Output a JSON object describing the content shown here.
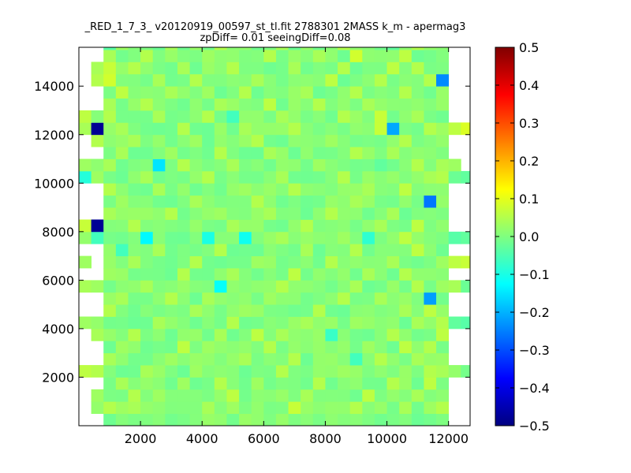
{
  "chart_data": {
    "type": "heatmap",
    "title": "_RED_1_7_3_ v20120919_00597_st_tl.fit 2788301 2MASS k_m - apermag3",
    "subtitle": "zpDiff= 0.01 seeingDiff=0.08",
    "xlabel": "",
    "ylabel": "",
    "xlim": [
      0,
      12700
    ],
    "ylim": [
      0,
      15600
    ],
    "xticks": [
      2000,
      4000,
      6000,
      8000,
      10000,
      12000
    ],
    "yticks": [
      2000,
      4000,
      6000,
      8000,
      10000,
      12000,
      14000
    ],
    "xtick_labels": [
      "2000",
      "4000",
      "6000",
      "8000",
      "10000",
      "12000"
    ],
    "ytick_labels": [
      "2000",
      "4000",
      "6000",
      "8000",
      "10000",
      "12000",
      "14000"
    ],
    "grid": false,
    "colormap": "jet",
    "clim": [
      -0.5,
      0.5
    ],
    "colorbar_ticks": [
      0.5,
      0.4,
      0.3,
      0.2,
      0.1,
      0.0,
      -0.1,
      -0.2,
      -0.3,
      -0.4,
      -0.5
    ],
    "colorbar_tick_labels": [
      "0.5",
      "0.4",
      "0.3",
      "0.2",
      "0.1",
      "0.0",
      "−0.1",
      "−0.2",
      "−0.3",
      "−0.4",
      "−0.5"
    ],
    "grid_cols": 32,
    "grid_rows": 32,
    "cell_width": 400,
    "cell_height": 500,
    "x_origin": 0,
    "y_origin": 0,
    "cells": [
      [
        1,
        1,
        0.02
      ],
      [
        2,
        1,
        0.05
      ],
      [
        3,
        1,
        0.03
      ],
      [
        4,
        1,
        0.04
      ],
      [
        5,
        1,
        0.02
      ],
      [
        10,
        1,
        0.04
      ],
      [
        12,
        1,
        0.03
      ],
      [
        17,
        1,
        0.07
      ],
      [
        22,
        1,
        0.05
      ],
      [
        26,
        1,
        0.04
      ],
      [
        28,
        1,
        0.03
      ],
      [
        29,
        1,
        0.05
      ],
      [
        1,
        2,
        0.03
      ],
      [
        4,
        2,
        0.05
      ],
      [
        6,
        2,
        0.03
      ],
      [
        12,
        2,
        0.06
      ],
      [
        18,
        2,
        0.04
      ],
      [
        23,
        2,
        0.06
      ],
      [
        27,
        2,
        0.04
      ],
      [
        3,
        3,
        0.04
      ],
      [
        8,
        3,
        0.03
      ],
      [
        11,
        3,
        0.05
      ],
      [
        14,
        3,
        0.03
      ],
      [
        19,
        3,
        0.05
      ],
      [
        25,
        3,
        0.05
      ],
      [
        28,
        3,
        0.06
      ],
      [
        0,
        4,
        0.06
      ],
      [
        1,
        4,
        0.05
      ],
      [
        5,
        4,
        0.04
      ],
      [
        9,
        4,
        0.03
      ],
      [
        16,
        4,
        0.05
      ],
      [
        21,
        4,
        0.03
      ],
      [
        28,
        4,
        0.05
      ],
      [
        29,
        4,
        0.04
      ],
      [
        30,
        4,
        0.02
      ],
      [
        31,
        4,
        -0.01
      ],
      [
        2,
        5,
        0.04
      ],
      [
        7,
        5,
        0.03
      ],
      [
        13,
        5,
        0.04
      ],
      [
        17,
        5,
        0.05
      ],
      [
        22,
        5,
        -0.06
      ],
      [
        24,
        5,
        0.05
      ],
      [
        27,
        5,
        0.04
      ],
      [
        3,
        6,
        0.03
      ],
      [
        8,
        6,
        0.06
      ],
      [
        10,
        6,
        0.03
      ],
      [
        15,
        6,
        0.05
      ],
      [
        23,
        6,
        0.03
      ],
      [
        26,
        6,
        0.06
      ],
      [
        28,
        6,
        0.05
      ],
      [
        1,
        7,
        0.04
      ],
      [
        4,
        7,
        0.05
      ],
      [
        11,
        7,
        0.04
      ],
      [
        14,
        7,
        0.06
      ],
      [
        16,
        7,
        0.04
      ],
      [
        20,
        7,
        -0.07
      ],
      [
        25,
        7,
        0.05
      ],
      [
        29,
        7,
        0.06
      ],
      [
        0,
        8,
        0.03
      ],
      [
        1,
        8,
        0.02
      ],
      [
        6,
        8,
        0.04
      ],
      [
        12,
        8,
        0.05
      ],
      [
        18,
        8,
        0.04
      ],
      [
        22,
        8,
        0.03
      ],
      [
        27,
        8,
        0.04
      ],
      [
        29,
        8,
        0.05
      ],
      [
        30,
        8,
        -0.03
      ],
      [
        31,
        8,
        -0.04
      ],
      [
        2,
        9,
        0.05
      ],
      [
        9,
        9,
        0.04
      ],
      [
        13,
        9,
        0.03
      ],
      [
        19,
        9,
        0.05
      ],
      [
        26,
        9,
        0.04
      ],
      [
        28,
        9,
        0.06
      ],
      [
        3,
        10,
        0.04
      ],
      [
        7,
        10,
        0.05
      ],
      [
        10,
        10,
        0.04
      ],
      [
        15,
        10,
        0.03
      ],
      [
        21,
        10,
        0.05
      ],
      [
        24,
        10,
        0.04
      ],
      [
        28,
        10,
        -0.22
      ],
      [
        0,
        11,
        0.04
      ],
      [
        1,
        11,
        0.03
      ],
      [
        5,
        11,
        0.04
      ],
      [
        11,
        11,
        -0.12
      ],
      [
        16,
        11,
        0.05
      ],
      [
        22,
        11,
        0.04
      ],
      [
        27,
        11,
        0.05
      ],
      [
        29,
        11,
        0.03
      ],
      [
        30,
        11,
        0.04
      ],
      [
        31,
        11,
        -0.02
      ],
      [
        2,
        12,
        0.03
      ],
      [
        8,
        12,
        0.05
      ],
      [
        12,
        12,
        0.04
      ],
      [
        17,
        12,
        0.06
      ],
      [
        23,
        12,
        0.04
      ],
      [
        26,
        12,
        0.05
      ],
      [
        0,
        13,
        0.03
      ],
      [
        4,
        13,
        0.04
      ],
      [
        9,
        13,
        0.05
      ],
      [
        14,
        13,
        0.03
      ],
      [
        20,
        13,
        0.05
      ],
      [
        25,
        13,
        0.04
      ],
      [
        29,
        13,
        0.03
      ],
      [
        30,
        13,
        0.06
      ],
      [
        31,
        13,
        0.07
      ],
      [
        3,
        14,
        -0.06
      ],
      [
        6,
        14,
        0.04
      ],
      [
        11,
        14,
        0.05
      ],
      [
        18,
        14,
        0.04
      ],
      [
        22,
        14,
        0.05
      ],
      [
        27,
        14,
        0.06
      ],
      [
        0,
        15,
        0.02
      ],
      [
        1,
        15,
        -0.06
      ],
      [
        5,
        15,
        -0.13
      ],
      [
        10,
        15,
        -0.1
      ],
      [
        13,
        15,
        -0.11
      ],
      [
        16,
        15,
        0.04
      ],
      [
        21,
        15,
        0.03
      ],
      [
        23,
        15,
        -0.08
      ],
      [
        26,
        15,
        0.06
      ],
      [
        30,
        15,
        -0.04
      ],
      [
        31,
        15,
        -0.03
      ],
      [
        0,
        16,
        0.07
      ],
      [
        1,
        16,
        -0.48
      ],
      [
        4,
        16,
        0.05
      ],
      [
        12,
        16,
        0.04
      ],
      [
        18,
        16,
        0.05
      ],
      [
        24,
        16,
        0.04
      ],
      [
        27,
        16,
        0.06
      ],
      [
        2,
        17,
        0.04
      ],
      [
        7,
        17,
        0.05
      ],
      [
        11,
        17,
        0.03
      ],
      [
        15,
        17,
        0.04
      ],
      [
        20,
        17,
        0.05
      ],
      [
        25,
        17,
        0.04
      ],
      [
        3,
        18,
        0.03
      ],
      [
        9,
        18,
        0.04
      ],
      [
        14,
        18,
        0.05
      ],
      [
        22,
        18,
        0.04
      ],
      [
        28,
        18,
        -0.26
      ],
      [
        2,
        19,
        0.05
      ],
      [
        6,
        19,
        0.04
      ],
      [
        13,
        19,
        0.03
      ],
      [
        17,
        19,
        0.05
      ],
      [
        23,
        19,
        0.04
      ],
      [
        26,
        19,
        0.06
      ],
      [
        0,
        20,
        -0.09
      ],
      [
        1,
        20,
        0.03
      ],
      [
        5,
        20,
        0.04
      ],
      [
        10,
        20,
        0.05
      ],
      [
        16,
        20,
        0.04
      ],
      [
        21,
        20,
        0.05
      ],
      [
        28,
        20,
        0.04
      ],
      [
        29,
        20,
        0.05
      ],
      [
        30,
        20,
        -0.02
      ],
      [
        31,
        20,
        -0.03
      ],
      [
        0,
        21,
        0.03
      ],
      [
        2,
        21,
        0.04
      ],
      [
        6,
        21,
        -0.15
      ],
      [
        8,
        21,
        0.05
      ],
      [
        12,
        21,
        0.04
      ],
      [
        19,
        21,
        0.03
      ],
      [
        24,
        21,
        -0.03
      ],
      [
        27,
        21,
        0.05
      ],
      [
        29,
        21,
        0.04
      ],
      [
        30,
        21,
        0.03
      ],
      [
        3,
        22,
        0.04
      ],
      [
        7,
        22,
        0.03
      ],
      [
        11,
        22,
        0.05
      ],
      [
        15,
        22,
        0.04
      ],
      [
        22,
        22,
        0.05
      ],
      [
        25,
        22,
        0.04
      ],
      [
        1,
        23,
        0.05
      ],
      [
        4,
        23,
        0.04
      ],
      [
        9,
        23,
        0.03
      ],
      [
        14,
        23,
        0.05
      ],
      [
        20,
        23,
        0.03
      ],
      [
        26,
        23,
        0.05
      ],
      [
        0,
        24,
        0.04
      ],
      [
        1,
        24,
        -0.48
      ],
      [
        3,
        24,
        0.04
      ],
      [
        8,
        24,
        0.05
      ],
      [
        13,
        24,
        0.04
      ],
      [
        17,
        24,
        0.05
      ],
      [
        24,
        24,
        0.07
      ],
      [
        25,
        24,
        -0.21
      ],
      [
        28,
        24,
        0.05
      ],
      [
        29,
        24,
        0.03
      ],
      [
        30,
        24,
        0.06
      ],
      [
        31,
        24,
        0.09
      ],
      [
        0,
        25,
        0.06
      ],
      [
        2,
        25,
        0.05
      ],
      [
        6,
        25,
        0.04
      ],
      [
        10,
        25,
        0.05
      ],
      [
        12,
        25,
        -0.06
      ],
      [
        16,
        25,
        0.04
      ],
      [
        21,
        25,
        0.05
      ],
      [
        24,
        25,
        0.07
      ],
      [
        27,
        25,
        0.04
      ],
      [
        2,
        26,
        0.04
      ],
      [
        5,
        26,
        0.05
      ],
      [
        11,
        26,
        0.04
      ],
      [
        15,
        26,
        0.06
      ],
      [
        19,
        26,
        0.05
      ],
      [
        23,
        26,
        0.04
      ],
      [
        3,
        27,
        0.06
      ],
      [
        7,
        27,
        0.04
      ],
      [
        10,
        27,
        0.03
      ],
      [
        13,
        27,
        0.05
      ],
      [
        18,
        27,
        0.04
      ],
      [
        22,
        27,
        0.05
      ],
      [
        26,
        27,
        0.05
      ],
      [
        1,
        28,
        0.05
      ],
      [
        2,
        28,
        0.08
      ],
      [
        6,
        28,
        0.04
      ],
      [
        9,
        28,
        0.05
      ],
      [
        14,
        28,
        0.04
      ],
      [
        20,
        28,
        0.06
      ],
      [
        24,
        28,
        0.05
      ],
      [
        28,
        28,
        0.05
      ],
      [
        29,
        28,
        -0.24
      ],
      [
        1,
        29,
        0.04
      ],
      [
        2,
        29,
        0.07
      ],
      [
        4,
        29,
        0.05
      ],
      [
        8,
        29,
        0.04
      ],
      [
        12,
        29,
        0.05
      ],
      [
        17,
        29,
        0.04
      ],
      [
        21,
        29,
        0.05
      ],
      [
        25,
        29,
        0.06
      ],
      [
        27,
        29,
        0.05
      ],
      [
        2,
        30,
        0.04
      ],
      [
        5,
        30,
        0.05
      ],
      [
        10,
        30,
        0.03
      ],
      [
        15,
        30,
        0.05
      ],
      [
        19,
        30,
        0.04
      ],
      [
        22,
        30,
        0.08
      ],
      [
        26,
        30,
        0.06
      ],
      [
        2,
        31,
        -0.04
      ],
      [
        3,
        31,
        0.03
      ],
      [
        7,
        31,
        0.04
      ],
      [
        11,
        31,
        0.05
      ],
      [
        16,
        31,
        0.04
      ],
      [
        21,
        31,
        0.05
      ],
      [
        25,
        31,
        -0.03
      ],
      [
        27,
        31,
        0.05
      ]
    ]
  }
}
